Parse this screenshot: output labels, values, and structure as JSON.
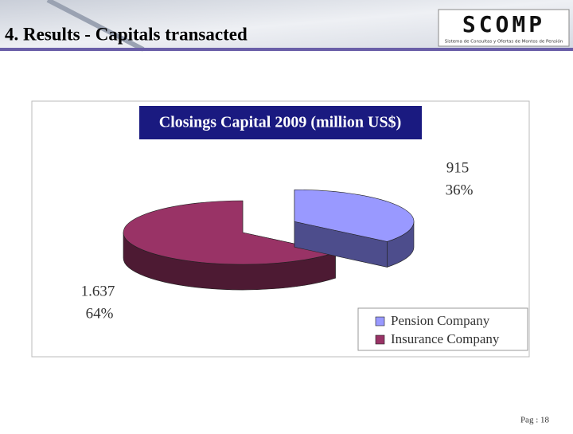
{
  "header": {
    "title": "4. Results -  Capitals transacted",
    "logo": "SCOMP",
    "logo_subtitle": "Sistema de Consultas y Ofertas de Montos de Pensión"
  },
  "chart_data": {
    "type": "pie",
    "title": "Closings Capital 2009 (million US$)",
    "categories": [
      "Pension Company",
      "Insurance Company"
    ],
    "values": [
      915,
      1637
    ],
    "value_labels": [
      "915",
      "1.637"
    ],
    "percentages": [
      36,
      64
    ],
    "percentage_labels": [
      "36%",
      "64%"
    ],
    "colors": [
      "#9999ff",
      "#993366"
    ],
    "side_colors": [
      "#4d4d8c",
      "#4d1a33"
    ],
    "legend": "bottom-right"
  },
  "footer": {
    "page": "Pag : 18"
  }
}
